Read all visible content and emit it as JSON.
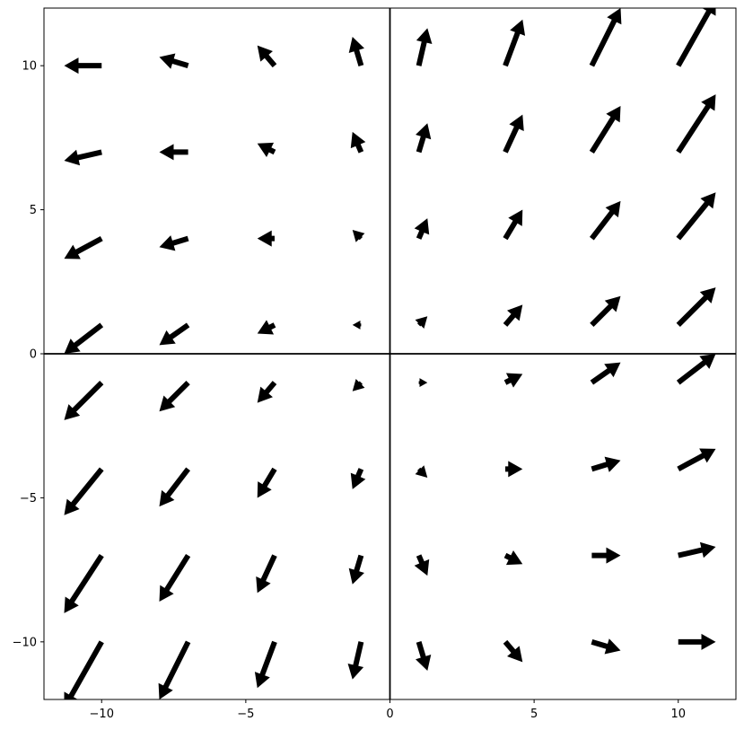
{
  "chart_data": {
    "type": "quiver",
    "title": "",
    "xlabel": "",
    "ylabel": "",
    "xlim": [
      -12,
      12
    ],
    "ylim": [
      -12,
      12
    ],
    "grid": false,
    "x_ticks": [
      -10,
      -5,
      0,
      5,
      10
    ],
    "y_ticks": [
      -10,
      -5,
      0,
      5,
      10
    ],
    "x_tick_labels": [
      "−10",
      "−5",
      "0",
      "5",
      "10"
    ],
    "y_tick_labels": [
      "−10",
      "−5",
      "0",
      "5",
      "10"
    ],
    "axis_lines": {
      "x": 0,
      "y": 0
    },
    "grid_points_x": [
      -10,
      -7,
      -4,
      -1,
      1,
      4,
      7,
      10
    ],
    "grid_points_y": [
      -10,
      -7,
      -4,
      -1,
      1,
      4,
      7,
      10
    ],
    "vectors": [
      {
        "x": -10,
        "y": 10,
        "u": -1.3,
        "v": 0.0
      },
      {
        "x": -7,
        "y": 10,
        "u": -1.0,
        "v": 0.3
      },
      {
        "x": -4,
        "y": 10,
        "u": -0.6,
        "v": 0.7
      },
      {
        "x": -1,
        "y": 10,
        "u": -0.3,
        "v": 1.0
      },
      {
        "x": 1,
        "y": 10,
        "u": 0.3,
        "v": 1.3
      },
      {
        "x": 4,
        "y": 10,
        "u": 0.6,
        "v": 1.6
      },
      {
        "x": 7,
        "y": 10,
        "u": 1.0,
        "v": 2.0
      },
      {
        "x": 10,
        "y": 10,
        "u": 1.3,
        "v": 2.3
      },
      {
        "x": -10,
        "y": 7,
        "u": -1.3,
        "v": -0.3
      },
      {
        "x": -7,
        "y": 7,
        "u": -1.0,
        "v": 0.0
      },
      {
        "x": -4,
        "y": 7,
        "u": -0.6,
        "v": 0.3
      },
      {
        "x": -1,
        "y": 7,
        "u": -0.3,
        "v": 0.7
      },
      {
        "x": 1,
        "y": 7,
        "u": 0.3,
        "v": 1.0
      },
      {
        "x": 4,
        "y": 7,
        "u": 0.6,
        "v": 1.3
      },
      {
        "x": 7,
        "y": 7,
        "u": 1.0,
        "v": 1.6
      },
      {
        "x": 10,
        "y": 7,
        "u": 1.3,
        "v": 2.0
      },
      {
        "x": -10,
        "y": 4,
        "u": -1.3,
        "v": -0.7
      },
      {
        "x": -7,
        "y": 4,
        "u": -1.0,
        "v": -0.3
      },
      {
        "x": -4,
        "y": 4,
        "u": -0.6,
        "v": 0.0
      },
      {
        "x": -1,
        "y": 4,
        "u": -0.3,
        "v": 0.3
      },
      {
        "x": 1,
        "y": 4,
        "u": 0.3,
        "v": 0.7
      },
      {
        "x": 4,
        "y": 4,
        "u": 0.6,
        "v": 1.0
      },
      {
        "x": 7,
        "y": 4,
        "u": 1.0,
        "v": 1.3
      },
      {
        "x": 10,
        "y": 4,
        "u": 1.3,
        "v": 1.6
      },
      {
        "x": -10,
        "y": 1,
        "u": -1.3,
        "v": -1.0
      },
      {
        "x": -7,
        "y": 1,
        "u": -1.0,
        "v": -0.7
      },
      {
        "x": -4,
        "y": 1,
        "u": -0.6,
        "v": -0.3
      },
      {
        "x": -1,
        "y": 1,
        "u": -0.3,
        "v": 0.0
      },
      {
        "x": 1,
        "y": 1,
        "u": 0.3,
        "v": 0.3
      },
      {
        "x": 4,
        "y": 1,
        "u": 0.6,
        "v": 0.7
      },
      {
        "x": 7,
        "y": 1,
        "u": 1.0,
        "v": 1.0
      },
      {
        "x": 10,
        "y": 1,
        "u": 1.3,
        "v": 1.3
      },
      {
        "x": -10,
        "y": -1,
        "u": -1.3,
        "v": -1.3
      },
      {
        "x": -7,
        "y": -1,
        "u": -1.0,
        "v": -1.0
      },
      {
        "x": -4,
        "y": -1,
        "u": -0.6,
        "v": -0.7
      },
      {
        "x": -1,
        "y": -1,
        "u": -0.3,
        "v": -0.3
      },
      {
        "x": 1,
        "y": -1,
        "u": 0.3,
        "v": 0.0
      },
      {
        "x": 4,
        "y": -1,
        "u": 0.6,
        "v": 0.3
      },
      {
        "x": 7,
        "y": -1,
        "u": 1.0,
        "v": 0.7
      },
      {
        "x": 10,
        "y": -1,
        "u": 1.3,
        "v": 1.0
      },
      {
        "x": -10,
        "y": -4,
        "u": -1.3,
        "v": -1.6
      },
      {
        "x": -7,
        "y": -4,
        "u": -1.0,
        "v": -1.3
      },
      {
        "x": -4,
        "y": -4,
        "u": -0.6,
        "v": -1.0
      },
      {
        "x": -1,
        "y": -4,
        "u": -0.3,
        "v": -0.7
      },
      {
        "x": 1,
        "y": -4,
        "u": 0.3,
        "v": -0.3
      },
      {
        "x": 4,
        "y": -4,
        "u": 0.6,
        "v": 0.0
      },
      {
        "x": 7,
        "y": -4,
        "u": 1.0,
        "v": 0.3
      },
      {
        "x": 10,
        "y": -4,
        "u": 1.3,
        "v": 0.7
      },
      {
        "x": -10,
        "y": -7,
        "u": -1.3,
        "v": -2.0
      },
      {
        "x": -7,
        "y": -7,
        "u": -1.0,
        "v": -1.6
      },
      {
        "x": -4,
        "y": -7,
        "u": -0.6,
        "v": -1.3
      },
      {
        "x": -1,
        "y": -7,
        "u": -0.3,
        "v": -1.0
      },
      {
        "x": 1,
        "y": -7,
        "u": 0.3,
        "v": -0.7
      },
      {
        "x": 4,
        "y": -7,
        "u": 0.6,
        "v": -0.3
      },
      {
        "x": 7,
        "y": -7,
        "u": 1.0,
        "v": 0.0
      },
      {
        "x": 10,
        "y": -7,
        "u": 1.3,
        "v": 0.3
      },
      {
        "x": -10,
        "y": -10,
        "u": -1.3,
        "v": -2.3
      },
      {
        "x": -7,
        "y": -10,
        "u": -1.0,
        "v": -2.0
      },
      {
        "x": -4,
        "y": -10,
        "u": -0.6,
        "v": -1.6
      },
      {
        "x": -1,
        "y": -10,
        "u": -0.3,
        "v": -1.3
      },
      {
        "x": 1,
        "y": -10,
        "u": 0.3,
        "v": -1.0
      },
      {
        "x": 4,
        "y": -10,
        "u": 0.6,
        "v": -0.7
      },
      {
        "x": 7,
        "y": -10,
        "u": 1.0,
        "v": -0.3
      },
      {
        "x": 10,
        "y": -10,
        "u": 1.3,
        "v": 0.0
      }
    ]
  },
  "colors": {
    "arrow": "#000000",
    "axis": "#000000",
    "background": "#ffffff"
  }
}
